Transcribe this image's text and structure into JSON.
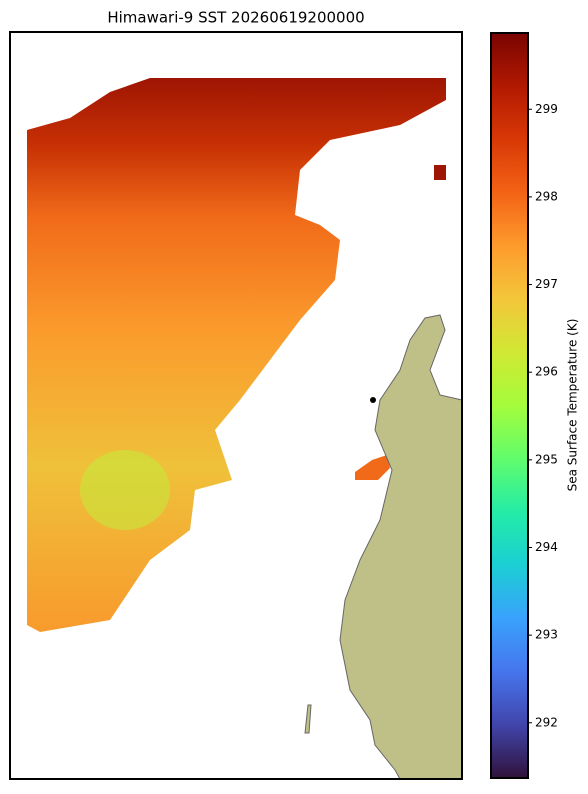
{
  "title": "Himawari-9 SST 20260619200000",
  "colorbar": {
    "label": "Sea Surface Temperature (K)",
    "lim": [
      291.37,
      299.87
    ],
    "ticks": [
      292,
      293,
      294,
      295,
      296,
      297,
      298,
      299
    ],
    "colors": [
      "#30123b",
      "#4145ab",
      "#4675ed",
      "#39a2fc",
      "#1bcfd4",
      "#24eca6",
      "#61fc6c",
      "#a4fc3b",
      "#d1e834",
      "#f3c63a",
      "#fe9b2d",
      "#f36315",
      "#d93806",
      "#b11901",
      "#7a0402"
    ]
  }
}
